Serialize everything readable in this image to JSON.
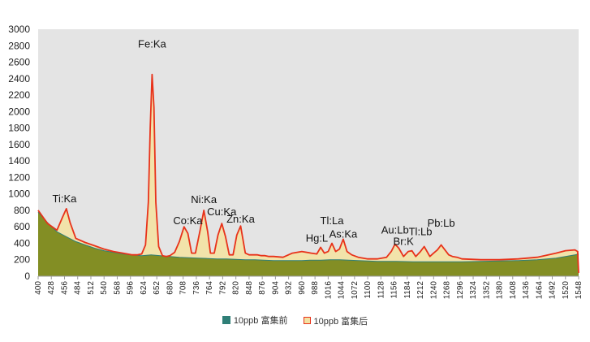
{
  "chart_data": {
    "type": "area",
    "title": "",
    "xlabel": "",
    "ylabel": "",
    "xlim": [
      400,
      1548
    ],
    "ylim": [
      0,
      3000
    ],
    "grid": false,
    "legend_position": "bottom",
    "y_ticks": [
      "0",
      "200",
      "400",
      "600",
      "800",
      "1000",
      "1200",
      "1400",
      "1600",
      "1800",
      "2000",
      "2200",
      "2400",
      "2600",
      "2800",
      "3000"
    ],
    "x_ticks": [
      "400",
      "428",
      "456",
      "484",
      "512",
      "540",
      "568",
      "596",
      "624",
      "652",
      "680",
      "708",
      "736",
      "764",
      "792",
      "820",
      "848",
      "876",
      "904",
      "932",
      "960",
      "988",
      "1016",
      "1044",
      "1072",
      "1100",
      "1128",
      "1156",
      "1184",
      "1212",
      "1240",
      "1268",
      "1296",
      "1324",
      "1352",
      "1380",
      "1408",
      "1436",
      "1464",
      "1492",
      "1520",
      "1548"
    ],
    "series": [
      {
        "name": "10ppb 富集前",
        "color": "#2f7f77",
        "fill": "#7d8a1e",
        "x": [
          400,
          420,
          440,
          460,
          480,
          500,
          520,
          540,
          560,
          580,
          600,
          620,
          640,
          660,
          680,
          700,
          720,
          740,
          760,
          780,
          800,
          820,
          840,
          860,
          880,
          900,
          920,
          940,
          960,
          980,
          1000,
          1020,
          1040,
          1060,
          1080,
          1100,
          1120,
          1140,
          1160,
          1180,
          1200,
          1220,
          1240,
          1260,
          1280,
          1300,
          1340,
          1380,
          1420,
          1460,
          1500,
          1540,
          1548
        ],
        "y": [
          780,
          650,
          540,
          480,
          420,
          380,
          340,
          310,
          290,
          270,
          260,
          250,
          260,
          250,
          240,
          230,
          225,
          220,
          215,
          210,
          210,
          205,
          200,
          200,
          195,
          190,
          190,
          190,
          190,
          195,
          195,
          200,
          200,
          195,
          190,
          185,
          180,
          180,
          180,
          178,
          175,
          175,
          175,
          175,
          175,
          175,
          180,
          185,
          190,
          200,
          220,
          260,
          270
        ]
      },
      {
        "name": "10ppb 富集后",
        "color": "#e8321a",
        "fill": "#f3e2a3",
        "x": [
          400,
          420,
          440,
          452,
          460,
          468,
          480,
          500,
          520,
          540,
          560,
          580,
          600,
          610,
          620,
          628,
          634,
          638,
          642,
          646,
          650,
          656,
          664,
          672,
          680,
          690,
          700,
          710,
          718,
          726,
          734,
          744,
          752,
          760,
          766,
          774,
          782,
          790,
          798,
          806,
          814,
          822,
          830,
          840,
          848,
          858,
          866,
          874,
          882,
          890,
          900,
          920,
          940,
          960,
          980,
          992,
          1000,
          1008,
          1016,
          1024,
          1032,
          1040,
          1048,
          1056,
          1066,
          1080,
          1100,
          1120,
          1140,
          1150,
          1158,
          1166,
          1176,
          1186,
          1194,
          1202,
          1212,
          1220,
          1232,
          1240,
          1248,
          1256,
          1264,
          1272,
          1280,
          1290,
          1300,
          1340,
          1380,
          1420,
          1460,
          1500,
          1520,
          1540,
          1546,
          1548
        ],
        "y": [
          800,
          640,
          560,
          720,
          820,
          650,
          460,
          410,
          370,
          330,
          300,
          280,
          260,
          260,
          270,
          380,
          900,
          1800,
          2450,
          2050,
          900,
          360,
          250,
          240,
          250,
          290,
          420,
          600,
          520,
          280,
          280,
          560,
          800,
          540,
          280,
          280,
          500,
          640,
          480,
          260,
          260,
          500,
          610,
          280,
          260,
          260,
          260,
          250,
          250,
          240,
          240,
          230,
          280,
          300,
          280,
          270,
          350,
          280,
          300,
          400,
          300,
          330,
          450,
          300,
          260,
          230,
          210,
          210,
          230,
          300,
          390,
          340,
          240,
          300,
          310,
          240,
          300,
          360,
          240,
          280,
          320,
          380,
          320,
          260,
          240,
          230,
          210,
          200,
          200,
          210,
          230,
          280,
          310,
          320,
          300,
          40
        ],
        "peak_labels": [
          {
            "label": "Ti:Ka",
            "x": 456,
            "y": 900
          },
          {
            "label": "Fe:Ka",
            "x": 642,
            "y": 2780
          },
          {
            "label": "Co:Ka",
            "x": 718,
            "y": 630
          },
          {
            "label": "Ni:Ka",
            "x": 752,
            "y": 890
          },
          {
            "label": "Cu:Ka",
            "x": 790,
            "y": 740
          },
          {
            "label": "Zn:Ka",
            "x": 830,
            "y": 650
          },
          {
            "label": "Hg:L",
            "x": 992,
            "y": 420
          },
          {
            "label": "Tl:La",
            "x": 1024,
            "y": 630
          },
          {
            "label": "As:Ka",
            "x": 1048,
            "y": 470
          },
          {
            "label": "Au:Lb",
            "x": 1158,
            "y": 520
          },
          {
            "label": "Br:K",
            "x": 1176,
            "y": 380
          },
          {
            "label": "Tl:Lb",
            "x": 1212,
            "y": 500
          },
          {
            "label": "Pb:Lb",
            "x": 1256,
            "y": 600
          }
        ]
      }
    ]
  }
}
